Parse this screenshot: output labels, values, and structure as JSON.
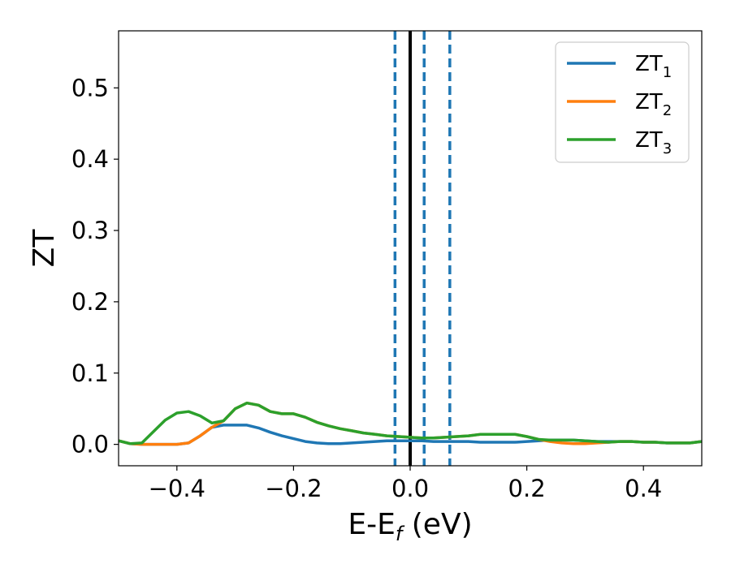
{
  "chart_data": {
    "type": "line",
    "xlabel_main": "E-E",
    "xlabel_sub": "f",
    "xlabel_unit": " (eV)",
    "ylabel": "ZT",
    "xlim": [
      -0.5,
      0.5
    ],
    "ylim": [
      -0.03,
      0.58
    ],
    "xticks": [
      -0.4,
      -0.2,
      0.0,
      0.2,
      0.4
    ],
    "xtick_labels": [
      "−0.4",
      "−0.2",
      "0.0",
      "0.2",
      "0.4"
    ],
    "yticks": [
      0.0,
      0.1,
      0.2,
      0.3,
      0.4,
      0.5
    ],
    "ytick_labels": [
      "0.0",
      "0.1",
      "0.2",
      "0.3",
      "0.4",
      "0.5"
    ],
    "grid": false,
    "legend_position": "top-right",
    "vlines": [
      {
        "x": 0.0,
        "style": "solid",
        "color": "#000000"
      },
      {
        "x": -0.026,
        "style": "dashed",
        "color": "#1f77b4"
      },
      {
        "x": 0.024,
        "style": "dashed",
        "color": "#1f77b4"
      },
      {
        "x": 0.068,
        "style": "dashed",
        "color": "#1f77b4"
      }
    ],
    "series": [
      {
        "name": "ZT",
        "name_sub": "1",
        "color": "#1f77b4",
        "x": [
          -0.5,
          -0.48,
          -0.46,
          -0.44,
          -0.42,
          -0.4,
          -0.38,
          -0.36,
          -0.34,
          -0.32,
          -0.3,
          -0.28,
          -0.26,
          -0.24,
          -0.22,
          -0.2,
          -0.18,
          -0.16,
          -0.14,
          -0.12,
          -0.1,
          -0.08,
          -0.06,
          -0.04,
          -0.02,
          0.0,
          0.02,
          0.04,
          0.06,
          0.08,
          0.1,
          0.12,
          0.14,
          0.16,
          0.18,
          0.2,
          0.22,
          0.24,
          0.26,
          0.28,
          0.3,
          0.32,
          0.34,
          0.36,
          0.38,
          0.4,
          0.42,
          0.44,
          0.46,
          0.48,
          0.5
        ],
        "y": [
          0.005,
          0.001,
          0.0,
          0.0,
          0.0,
          0.0,
          0.002,
          0.012,
          0.024,
          0.027,
          0.027,
          0.027,
          0.023,
          0.017,
          0.012,
          0.008,
          0.004,
          0.002,
          0.001,
          0.001,
          0.002,
          0.003,
          0.004,
          0.005,
          0.005,
          0.005,
          0.005,
          0.004,
          0.004,
          0.004,
          0.004,
          0.003,
          0.003,
          0.003,
          0.003,
          0.004,
          0.005,
          0.006,
          0.006,
          0.006,
          0.005,
          0.004,
          0.004,
          0.004,
          0.004,
          0.003,
          0.003,
          0.002,
          0.002,
          0.002,
          0.004
        ]
      },
      {
        "name": "ZT",
        "name_sub": "2",
        "color": "#ff7f0e",
        "x": [
          -0.5,
          -0.48,
          -0.46,
          -0.44,
          -0.42,
          -0.4,
          -0.38,
          -0.36,
          -0.34,
          -0.32,
          -0.3,
          -0.28,
          -0.26,
          -0.24,
          -0.22,
          -0.2,
          -0.18,
          -0.16,
          -0.14,
          -0.12,
          -0.1,
          -0.08,
          -0.06,
          -0.04,
          -0.02,
          0.0,
          0.02,
          0.04,
          0.06,
          0.08,
          0.1,
          0.12,
          0.14,
          0.16,
          0.18,
          0.2,
          0.22,
          0.24,
          0.26,
          0.28,
          0.3,
          0.32,
          0.34,
          0.36,
          0.38,
          0.4,
          0.42,
          0.44,
          0.46,
          0.48,
          0.5
        ],
        "y": [
          0.005,
          0.001,
          0.0,
          0.0,
          0.0,
          0.0,
          0.002,
          0.012,
          0.024,
          0.033,
          0.05,
          0.058,
          0.055,
          0.046,
          0.043,
          0.043,
          0.038,
          0.031,
          0.026,
          0.022,
          0.019,
          0.016,
          0.014,
          0.012,
          0.011,
          0.01,
          0.009,
          0.009,
          0.01,
          0.011,
          0.012,
          0.014,
          0.014,
          0.014,
          0.014,
          0.011,
          0.007,
          0.004,
          0.002,
          0.001,
          0.001,
          0.002,
          0.003,
          0.004,
          0.004,
          0.003,
          0.003,
          0.002,
          0.002,
          0.002,
          0.004
        ]
      },
      {
        "name": "ZT",
        "name_sub": "3",
        "color": "#2ca02c",
        "x": [
          -0.5,
          -0.48,
          -0.46,
          -0.44,
          -0.42,
          -0.4,
          -0.38,
          -0.36,
          -0.34,
          -0.32,
          -0.3,
          -0.28,
          -0.26,
          -0.24,
          -0.22,
          -0.2,
          -0.18,
          -0.16,
          -0.14,
          -0.12,
          -0.1,
          -0.08,
          -0.06,
          -0.04,
          -0.02,
          0.0,
          0.02,
          0.04,
          0.06,
          0.08,
          0.1,
          0.12,
          0.14,
          0.16,
          0.18,
          0.2,
          0.22,
          0.24,
          0.26,
          0.28,
          0.3,
          0.32,
          0.34,
          0.36,
          0.38,
          0.4,
          0.42,
          0.44,
          0.46,
          0.48,
          0.5
        ],
        "y": [
          0.005,
          0.001,
          0.002,
          0.018,
          0.034,
          0.044,
          0.046,
          0.04,
          0.03,
          0.033,
          0.05,
          0.058,
          0.055,
          0.046,
          0.043,
          0.043,
          0.038,
          0.031,
          0.026,
          0.022,
          0.019,
          0.016,
          0.014,
          0.012,
          0.011,
          0.01,
          0.009,
          0.009,
          0.01,
          0.011,
          0.012,
          0.014,
          0.014,
          0.014,
          0.014,
          0.011,
          0.007,
          0.006,
          0.006,
          0.006,
          0.005,
          0.004,
          0.003,
          0.004,
          0.004,
          0.003,
          0.003,
          0.002,
          0.002,
          0.002,
          0.004
        ]
      }
    ]
  }
}
